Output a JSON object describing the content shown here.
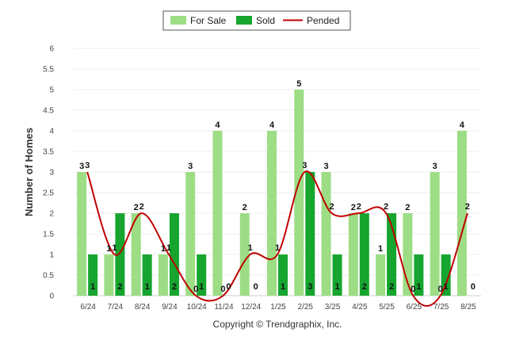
{
  "chart_data": {
    "type": "bar",
    "title": "",
    "xlabel": "",
    "ylabel": "Number of Homes",
    "ylim": [
      0,
      6
    ],
    "yticks": [
      0,
      0.5,
      1,
      1.5,
      2,
      2.5,
      3,
      3.5,
      4,
      4.5,
      5,
      5.5,
      6
    ],
    "grid": true,
    "legend_position": "top-center",
    "categories": [
      "6/24",
      "7/24",
      "8/24",
      "9/24",
      "10/24",
      "11/24",
      "12/24",
      "1/25",
      "2/25",
      "3/25",
      "4/25",
      "5/25",
      "6/25",
      "7/25",
      "8/25"
    ],
    "series": [
      {
        "name": "For Sale",
        "type": "bar",
        "color": "#9ddd85",
        "values": [
          3,
          1,
          2,
          1,
          3,
          4,
          2,
          4,
          5,
          3,
          2,
          1,
          2,
          3,
          4
        ]
      },
      {
        "name": "Sold",
        "type": "bar",
        "color": "#16a52f",
        "values": [
          1,
          2,
          1,
          2,
          1,
          0,
          0,
          1,
          3,
          1,
          2,
          2,
          1,
          1,
          0
        ]
      },
      {
        "name": "Pended",
        "type": "line",
        "color": "#c00000",
        "values": [
          3,
          1,
          2,
          1,
          0,
          0,
          1,
          1,
          3,
          2,
          2,
          2,
          0,
          0,
          2
        ]
      }
    ]
  },
  "footer": {
    "copyright": "Copyright © Trendgraphix, Inc."
  }
}
